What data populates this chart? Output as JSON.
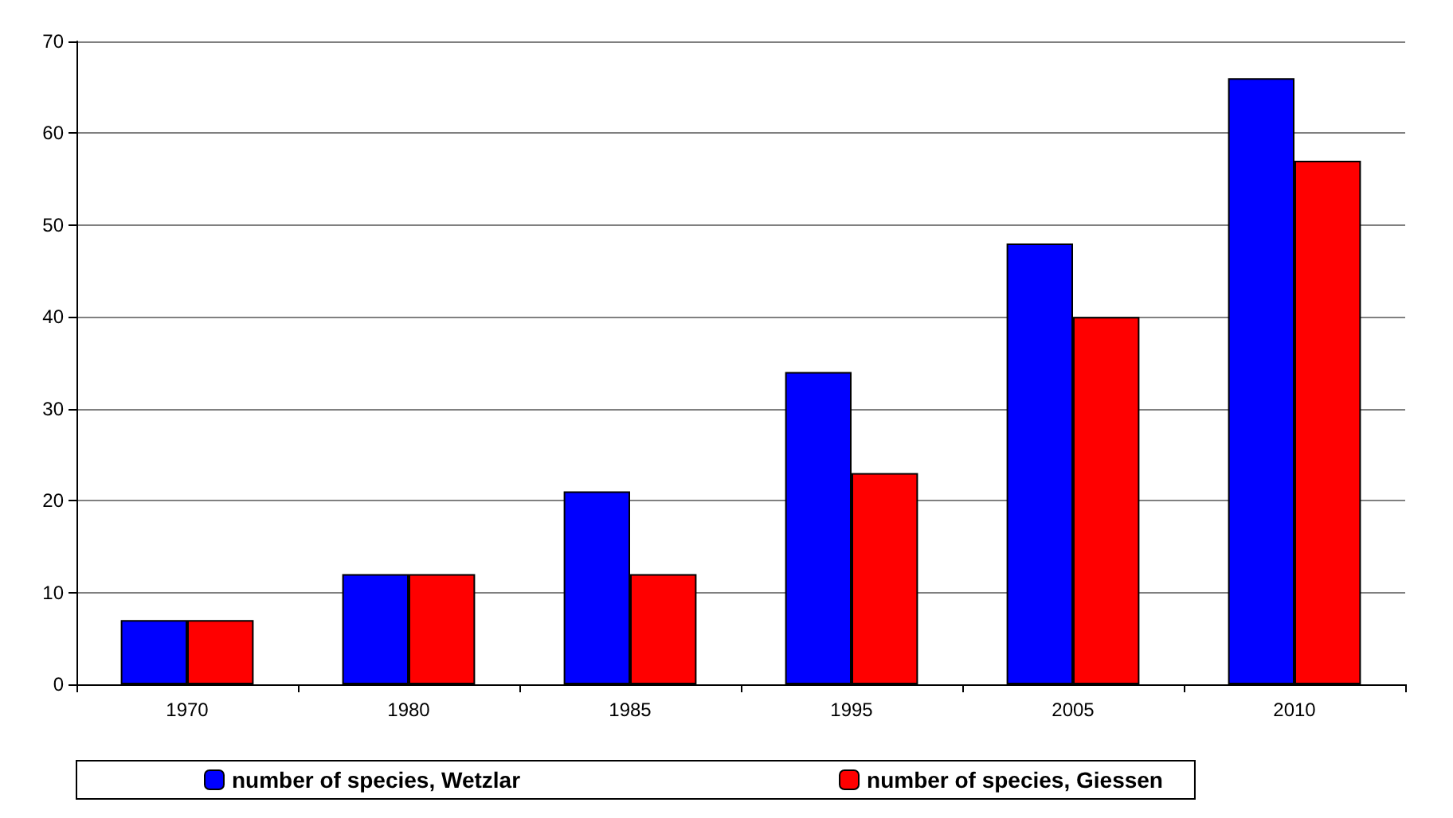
{
  "chart_data": {
    "type": "bar",
    "categories": [
      "1970",
      "1980",
      "1985",
      "1995",
      "2005",
      "2010"
    ],
    "series": [
      {
        "name": "number of species, Wetzlar",
        "color": "#0000ff",
        "values": [
          7,
          12,
          21,
          34,
          48,
          66
        ]
      },
      {
        "name": "number of species, Giessen",
        "color": "#ff0000",
        "values": [
          7,
          12,
          12,
          23,
          40,
          57
        ]
      }
    ],
    "ylim": [
      0,
      70
    ],
    "yticks": [
      0,
      10,
      20,
      30,
      40,
      50,
      60,
      70
    ],
    "grid": "y",
    "legend": "bottom"
  }
}
